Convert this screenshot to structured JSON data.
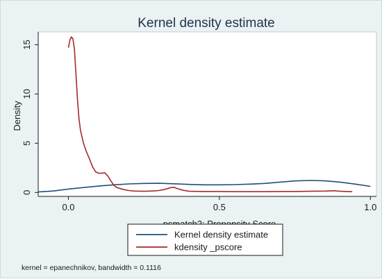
{
  "chart_data": {
    "type": "line",
    "title": "Kernel density estimate",
    "xlabel": "psmatch2: Propensity Score",
    "ylabel": "Density",
    "xlim": [
      -0.1,
      1.02
    ],
    "ylim": [
      -0.4,
      16.3
    ],
    "x_ticks": [
      {
        "value": 0,
        "label": "0.0"
      },
      {
        "value": 0.5,
        "label": "0.5"
      },
      {
        "value": 1,
        "label": "1.0"
      }
    ],
    "y_ticks": [
      {
        "value": 0,
        "label": "0"
      },
      {
        "value": 5,
        "label": "5"
      },
      {
        "value": 10,
        "label": "10"
      },
      {
        "value": 15,
        "label": "15"
      }
    ],
    "grid": false,
    "legend_position": "bottom",
    "series": [
      {
        "name": "Kernel density estimate",
        "color": "#1f4e79",
        "points": [
          [
            -0.1,
            0.05
          ],
          [
            -0.05,
            0.15
          ],
          [
            0.0,
            0.35
          ],
          [
            0.05,
            0.5
          ],
          [
            0.1,
            0.65
          ],
          [
            0.15,
            0.78
          ],
          [
            0.2,
            0.87
          ],
          [
            0.25,
            0.92
          ],
          [
            0.3,
            0.93
          ],
          [
            0.35,
            0.88
          ],
          [
            0.4,
            0.82
          ],
          [
            0.45,
            0.78
          ],
          [
            0.5,
            0.78
          ],
          [
            0.55,
            0.8
          ],
          [
            0.6,
            0.85
          ],
          [
            0.65,
            0.92
          ],
          [
            0.7,
            1.05
          ],
          [
            0.75,
            1.17
          ],
          [
            0.8,
            1.22
          ],
          [
            0.85,
            1.18
          ],
          [
            0.9,
            1.05
          ],
          [
            0.95,
            0.85
          ],
          [
            1.0,
            0.62
          ]
        ]
      },
      {
        "name": "kdensity _pscore",
        "color": "#a52a2a",
        "points": [
          [
            0.0,
            14.7
          ],
          [
            0.005,
            15.5
          ],
          [
            0.01,
            15.8
          ],
          [
            0.015,
            15.6
          ],
          [
            0.02,
            14.5
          ],
          [
            0.025,
            12.0
          ],
          [
            0.03,
            9.5
          ],
          [
            0.035,
            7.5
          ],
          [
            0.04,
            6.3
          ],
          [
            0.05,
            5.0
          ],
          [
            0.06,
            4.1
          ],
          [
            0.07,
            3.4
          ],
          [
            0.08,
            2.6
          ],
          [
            0.09,
            2.1
          ],
          [
            0.1,
            1.95
          ],
          [
            0.11,
            1.95
          ],
          [
            0.12,
            2.0
          ],
          [
            0.13,
            1.7
          ],
          [
            0.14,
            1.2
          ],
          [
            0.15,
            0.75
          ],
          [
            0.16,
            0.5
          ],
          [
            0.18,
            0.32
          ],
          [
            0.2,
            0.2
          ],
          [
            0.22,
            0.14
          ],
          [
            0.25,
            0.12
          ],
          [
            0.28,
            0.15
          ],
          [
            0.3,
            0.2
          ],
          [
            0.32,
            0.32
          ],
          [
            0.34,
            0.5
          ],
          [
            0.35,
            0.52
          ],
          [
            0.36,
            0.4
          ],
          [
            0.38,
            0.22
          ],
          [
            0.4,
            0.12
          ],
          [
            0.45,
            0.1
          ],
          [
            0.5,
            0.1
          ],
          [
            0.55,
            0.08
          ],
          [
            0.6,
            0.08
          ],
          [
            0.65,
            0.08
          ],
          [
            0.7,
            0.1
          ],
          [
            0.75,
            0.1
          ],
          [
            0.8,
            0.12
          ],
          [
            0.85,
            0.14
          ],
          [
            0.88,
            0.18
          ],
          [
            0.9,
            0.12
          ],
          [
            0.92,
            0.1
          ],
          [
            0.94,
            0.08
          ]
        ]
      }
    ],
    "note": "kernel = epanechnikov, bandwidth = 0.1116"
  }
}
